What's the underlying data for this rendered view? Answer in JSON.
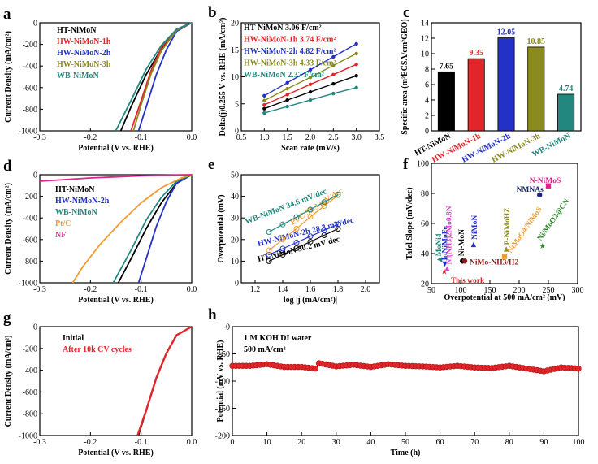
{
  "figure": {
    "panels": [
      "a",
      "b",
      "c",
      "d",
      "e",
      "f",
      "g",
      "h"
    ]
  },
  "chart_data": [
    {
      "id": "a",
      "type": "line",
      "xlabel": "Potential (V vs. RHE)",
      "ylabel": "Current Density (mA/cm²)",
      "xlim": [
        -0.3,
        0.0
      ],
      "ylim": [
        -1000,
        0
      ],
      "xticks": [
        -0.3,
        -0.2,
        -0.1,
        0.0
      ],
      "yticks": [
        -1000,
        -800,
        -600,
        -400,
        -200,
        0
      ],
      "xtick_labels": [
        "-0.3",
        "-0.2",
        "-0.1",
        "0.0"
      ],
      "ytick_labels": [
        "-1000",
        "-800",
        "-600",
        "-400",
        "-200",
        "0"
      ],
      "series": [
        {
          "name": "HT-NiMoN",
          "color": "#000000",
          "x": [
            0,
            -0.03,
            -0.06,
            -0.09,
            -0.12,
            -0.14
          ],
          "y": [
            0,
            -70,
            -240,
            -480,
            -780,
            -1000
          ]
        },
        {
          "name": "HW-NiMoN-1h",
          "color": "#e0262a",
          "x": [
            0,
            -0.03,
            -0.06,
            -0.08,
            -0.1,
            -0.12
          ],
          "y": [
            0,
            -60,
            -230,
            -440,
            -720,
            -1000
          ]
        },
        {
          "name": "HW-NiMoN-2h",
          "color": "#2431c8",
          "x": [
            0,
            -0.03,
            -0.05,
            -0.07,
            -0.09,
            -0.105
          ],
          "y": [
            0,
            -80,
            -250,
            -480,
            -780,
            -1000
          ]
        },
        {
          "name": "HW-NiMoN-3h",
          "color": "#8a8a1e",
          "x": [
            0,
            -0.03,
            -0.06,
            -0.08,
            -0.1,
            -0.115
          ],
          "y": [
            0,
            -70,
            -260,
            -470,
            -760,
            -1000
          ]
        },
        {
          "name": "WB-NiMoN",
          "color": "#22877e",
          "x": [
            0,
            -0.03,
            -0.06,
            -0.09,
            -0.12,
            -0.15
          ],
          "y": [
            0,
            -60,
            -210,
            -430,
            -720,
            -1000
          ]
        }
      ]
    },
    {
      "id": "b",
      "type": "scatter",
      "xlabel": "Scan rate (mV/s)",
      "ylabel": "Delta(j)0.255 V vs. RHE (mA/cm²)",
      "xlim": [
        0.5,
        3.5
      ],
      "ylim": [
        0,
        20
      ],
      "xticks": [
        0.5,
        1.0,
        1.5,
        2.0,
        2.5,
        3.0,
        3.5
      ],
      "yticks": [
        0,
        5,
        10,
        15,
        20
      ],
      "xtick_labels": [
        "0.5",
        "1.0",
        "1.5",
        "2.0",
        "2.5",
        "3.0",
        "3.5"
      ],
      "ytick_labels": [
        "0",
        "5",
        "10",
        "15",
        "20"
      ],
      "x": [
        1.0,
        1.5,
        2.0,
        2.5,
        3.0
      ],
      "series": [
        {
          "name": "HT-NiMoN",
          "label": "HT-NiMoN 3.06 F/cm²",
          "color": "#000000",
          "values": [
            4.1,
            5.7,
            7.2,
            8.7,
            10.2
          ]
        },
        {
          "name": "HW-NiMoN-1h",
          "label": "HW-NiMoN-1h 3.74 F/cm²",
          "color": "#e0262a",
          "values": [
            4.8,
            6.7,
            8.6,
            10.4,
            12.3
          ]
        },
        {
          "name": "HW-NiMoN-2h",
          "label": "HW-NiMoN-2h 4.82 F/cm²",
          "color": "#2431c8",
          "values": [
            6.5,
            8.9,
            11.3,
            13.7,
            16.1
          ]
        },
        {
          "name": "HW-NiMoN-3h",
          "label": "HW-NiMoN-3h 4.33 F/cm²",
          "color": "#8a8a1e",
          "values": [
            5.6,
            7.8,
            9.9,
            12.1,
            14.3
          ]
        },
        {
          "name": "WB-NiMoN",
          "label": "WB-NiMoN 2.37 F/cm²",
          "color": "#22877e",
          "values": [
            3.3,
            4.5,
            5.7,
            6.9,
            8.0
          ]
        }
      ]
    },
    {
      "id": "c",
      "type": "bar",
      "ylabel": "Specific area (m²ECSA/cm²GEO)",
      "ylim": [
        0,
        14
      ],
      "yticks": [
        0,
        2,
        4,
        6,
        8,
        10,
        12,
        14
      ],
      "ytick_labels": [
        "0",
        "2",
        "4",
        "6",
        "8",
        "10",
        "12",
        "14"
      ],
      "categories": [
        "HT-NiMoN",
        "HW-NiMoN-1h",
        "HW-NiMoN-2h",
        "HW-NiMoN-3h",
        "WB-NiMoN"
      ],
      "values": [
        7.65,
        9.35,
        12.05,
        10.85,
        4.74
      ],
      "value_labels": [
        "7.65",
        "9.35",
        "12.05",
        "10.85",
        "4.74"
      ],
      "colors": [
        "#000000",
        "#e0262a",
        "#2431c8",
        "#8a8a1e",
        "#22877e"
      ]
    },
    {
      "id": "d",
      "type": "line",
      "xlabel": "Potential (V vs. RHE)",
      "ylabel": "Current Density (mA/cm²)",
      "xlim": [
        -0.3,
        0.0
      ],
      "ylim": [
        -1000,
        0
      ],
      "xticks": [
        -0.3,
        -0.2,
        -0.1,
        0.0
      ],
      "yticks": [
        -1000,
        -800,
        -600,
        -400,
        -200,
        0
      ],
      "xtick_labels": [
        "-0.3",
        "-0.2",
        "-0.1",
        "0.0"
      ],
      "ytick_labels": [
        "-1000",
        "-800",
        "-600",
        "-400",
        "-200",
        "0"
      ],
      "series": [
        {
          "name": "HT-NiMoN",
          "color": "#000000",
          "x": [
            0,
            -0.03,
            -0.06,
            -0.09,
            -0.12,
            -0.145
          ],
          "y": [
            0,
            -80,
            -260,
            -500,
            -780,
            -1000
          ]
        },
        {
          "name": "HW-NiMoN-2h",
          "color": "#2431c8",
          "x": [
            0,
            -0.03,
            -0.05,
            -0.07,
            -0.09,
            -0.105
          ],
          "y": [
            0,
            -80,
            -250,
            -480,
            -780,
            -1000
          ]
        },
        {
          "name": "WB-NiMoN",
          "color": "#22877e",
          "x": [
            0,
            -0.03,
            -0.06,
            -0.09,
            -0.12,
            -0.155
          ],
          "y": [
            0,
            -60,
            -210,
            -420,
            -700,
            -1000
          ]
        },
        {
          "name": "Pt/C",
          "color": "#f29a2e",
          "x": [
            0,
            -0.02,
            -0.06,
            -0.1,
            -0.14,
            -0.18,
            -0.215,
            -0.235
          ],
          "y": [
            0,
            -30,
            -120,
            -260,
            -440,
            -640,
            -850,
            -1000
          ]
        },
        {
          "name": "NF",
          "color": "#e0228c",
          "x": [
            -0.3,
            -0.2,
            -0.1,
            0
          ],
          "y": [
            -60,
            -30,
            -10,
            0
          ]
        }
      ]
    },
    {
      "id": "e",
      "type": "scatter",
      "xlabel": "log |j (mA/cm²)|",
      "ylabel": "Overpotential (mV)",
      "xlim": [
        1.1,
        2.1
      ],
      "ylim": [
        0,
        50
      ],
      "xticks": [
        1.2,
        1.4,
        1.6,
        1.8,
        2.0
      ],
      "yticks": [
        0,
        10,
        20,
        30,
        40,
        50
      ],
      "xtick_labels": [
        "1.2",
        "1.4",
        "1.6",
        "1.8",
        "2.0"
      ],
      "ytick_labels": [
        "0",
        "10",
        "20",
        "30",
        "40",
        "50"
      ],
      "series": [
        {
          "name": "HT-NiMoN",
          "label": "HT-NiMoN 30.2 mV/dec",
          "color": "#000000",
          "x": [
            1.3,
            1.4,
            1.5,
            1.6,
            1.7,
            1.8
          ],
          "y": [
            10,
            13,
            16,
            19,
            22,
            25
          ]
        },
        {
          "name": "HW-NiMoN-2h",
          "label": "HW-NiMoN-2h 28.3 mV/dec",
          "color": "#2431c8",
          "x": [
            1.3,
            1.4,
            1.5,
            1.6,
            1.7,
            1.8
          ],
          "y": [
            13,
            15.8,
            18.6,
            21.5,
            24.3,
            27
          ]
        },
        {
          "name": "Pt/C",
          "label": "Pt/C 52.3 mV/dec",
          "color": "#f29a2e",
          "x": [
            1.3,
            1.4,
            1.5,
            1.6,
            1.7,
            1.8
          ],
          "y": [
            15,
            20,
            25,
            30.5,
            35.5,
            40.5
          ]
        },
        {
          "name": "WB-NiMoN",
          "label": "WB-NiMoN 34.6 mV/dec",
          "color": "#22877e",
          "x": [
            1.3,
            1.4,
            1.5,
            1.6,
            1.7,
            1.8
          ],
          "y": [
            23.5,
            27,
            30.4,
            33.9,
            37.3,
            40.8
          ]
        }
      ]
    },
    {
      "id": "f",
      "type": "scatter",
      "xlabel": "Overpotential at 500 mA/cm² (mV)",
      "ylabel": "Tafel Slope (mV/dec)",
      "xlim": [
        50,
        300
      ],
      "ylim": [
        20,
        100
      ],
      "xticks": [
        50,
        100,
        150,
        200,
        250,
        300
      ],
      "yticks": [
        20,
        40,
        60,
        80,
        100
      ],
      "xtick_labels": [
        "50",
        "100",
        "150",
        "200",
        "250",
        "300"
      ],
      "ytick_labels": [
        "20",
        "40",
        "60",
        "80",
        "100"
      ],
      "points": [
        {
          "name": "This work",
          "x": 72,
          "y": 28,
          "color": "#d62728",
          "marker": "star"
        },
        {
          "name": "MoNi4",
          "x": 64,
          "y": 36,
          "color": "#22877e",
          "marker": "tri-left"
        },
        {
          "name": "h-NiMoFe",
          "x": 73,
          "y": 33,
          "color": "#2431c8",
          "marker": "tri-down"
        },
        {
          "name": "Ni(NH3)2Mo0.8N",
          "x": 77,
          "y": 30,
          "color": "#d943d0",
          "marker": "tri-up"
        },
        {
          "name": "Ni-MoN",
          "x": 103,
          "y": 35,
          "color": "#000000",
          "marker": "circle"
        },
        {
          "name": "NiMo-NH3/H2",
          "x": 107,
          "y": 35,
          "color": "#8b1a1a",
          "marker": "circle"
        },
        {
          "name": "NiMoN",
          "x": 122,
          "y": 46,
          "color": "#2431c8",
          "marker": "tri-up"
        },
        {
          "name": "P-NiMoHZ",
          "x": 178,
          "y": 43,
          "color": "#8a8a1e",
          "marker": "tri-up"
        },
        {
          "name": "NiMoO4/NiMoS",
          "x": 175,
          "y": 38,
          "color": "#f29a2e",
          "marker": "square"
        },
        {
          "name": "Ni/MoO2@CN",
          "x": 240,
          "y": 45,
          "color": "#2a8a2a",
          "marker": "star"
        },
        {
          "name": "NMNAs",
          "x": 235,
          "y": 79,
          "color": "#1a237e",
          "marker": "circle"
        },
        {
          "name": "N-NiMoS",
          "x": 250,
          "y": 85,
          "color": "#e0228c",
          "marker": "square"
        }
      ]
    },
    {
      "id": "g",
      "type": "line",
      "xlabel": "Potential (V vs. RHE)",
      "ylabel": "Current Density (mA/cm²)",
      "xlim": [
        -0.3,
        0.0
      ],
      "ylim": [
        -1000,
        0
      ],
      "xticks": [
        -0.3,
        -0.2,
        -0.1,
        0.0
      ],
      "yticks": [
        -1000,
        -800,
        -600,
        -400,
        -200,
        0
      ],
      "xtick_labels": [
        "-0.3",
        "-0.2",
        "-0.1",
        "0.0"
      ],
      "ytick_labels": [
        "-1000",
        "-800",
        "-600",
        "-400",
        "-200",
        "0"
      ],
      "series": [
        {
          "name": "Initial",
          "color": "#000000",
          "x": [
            0,
            -0.03,
            -0.05,
            -0.07,
            -0.09,
            -0.105
          ],
          "y": [
            0,
            -80,
            -250,
            -480,
            -780,
            -1000
          ]
        },
        {
          "name": "After 10k CV cycles",
          "color": "#e0262a",
          "x": [
            0,
            -0.03,
            -0.05,
            -0.07,
            -0.09,
            -0.107
          ],
          "y": [
            0,
            -78,
            -245,
            -470,
            -770,
            -1000
          ]
        }
      ]
    },
    {
      "id": "h",
      "type": "line",
      "xlabel": "Time (h)",
      "ylabel": "Potential (mV vs. RHE)",
      "xlim": [
        0,
        100
      ],
      "ylim": [
        -200,
        0
      ],
      "xticks": [
        0,
        10,
        20,
        30,
        40,
        50,
        60,
        70,
        80,
        90,
        100
      ],
      "yticks": [
        -200,
        -150,
        -100,
        -50,
        0
      ],
      "xtick_labels": [
        "0",
        "10",
        "20",
        "30",
        "40",
        "50",
        "60",
        "70",
        "80",
        "90",
        "100"
      ],
      "ytick_labels": [
        "-200",
        "-150",
        "-100",
        "-50",
        "0"
      ],
      "annotations": [
        "1 M KOH DI water",
        "500 mA/cm²"
      ],
      "series": [
        {
          "name": "stability",
          "color": "#e0262a",
          "x": [
            0,
            5,
            10,
            15,
            20,
            24,
            25,
            30,
            35,
            40,
            45,
            50,
            55,
            60,
            65,
            70,
            75,
            80,
            85,
            90,
            95,
            100
          ],
          "y": [
            -72,
            -72,
            -69,
            -74,
            -74,
            -77,
            -67,
            -73,
            -70,
            -74,
            -69,
            -72,
            -73,
            -75,
            -72,
            -75,
            -76,
            -72,
            -77,
            -82,
            -75,
            -77
          ]
        }
      ]
    }
  ]
}
